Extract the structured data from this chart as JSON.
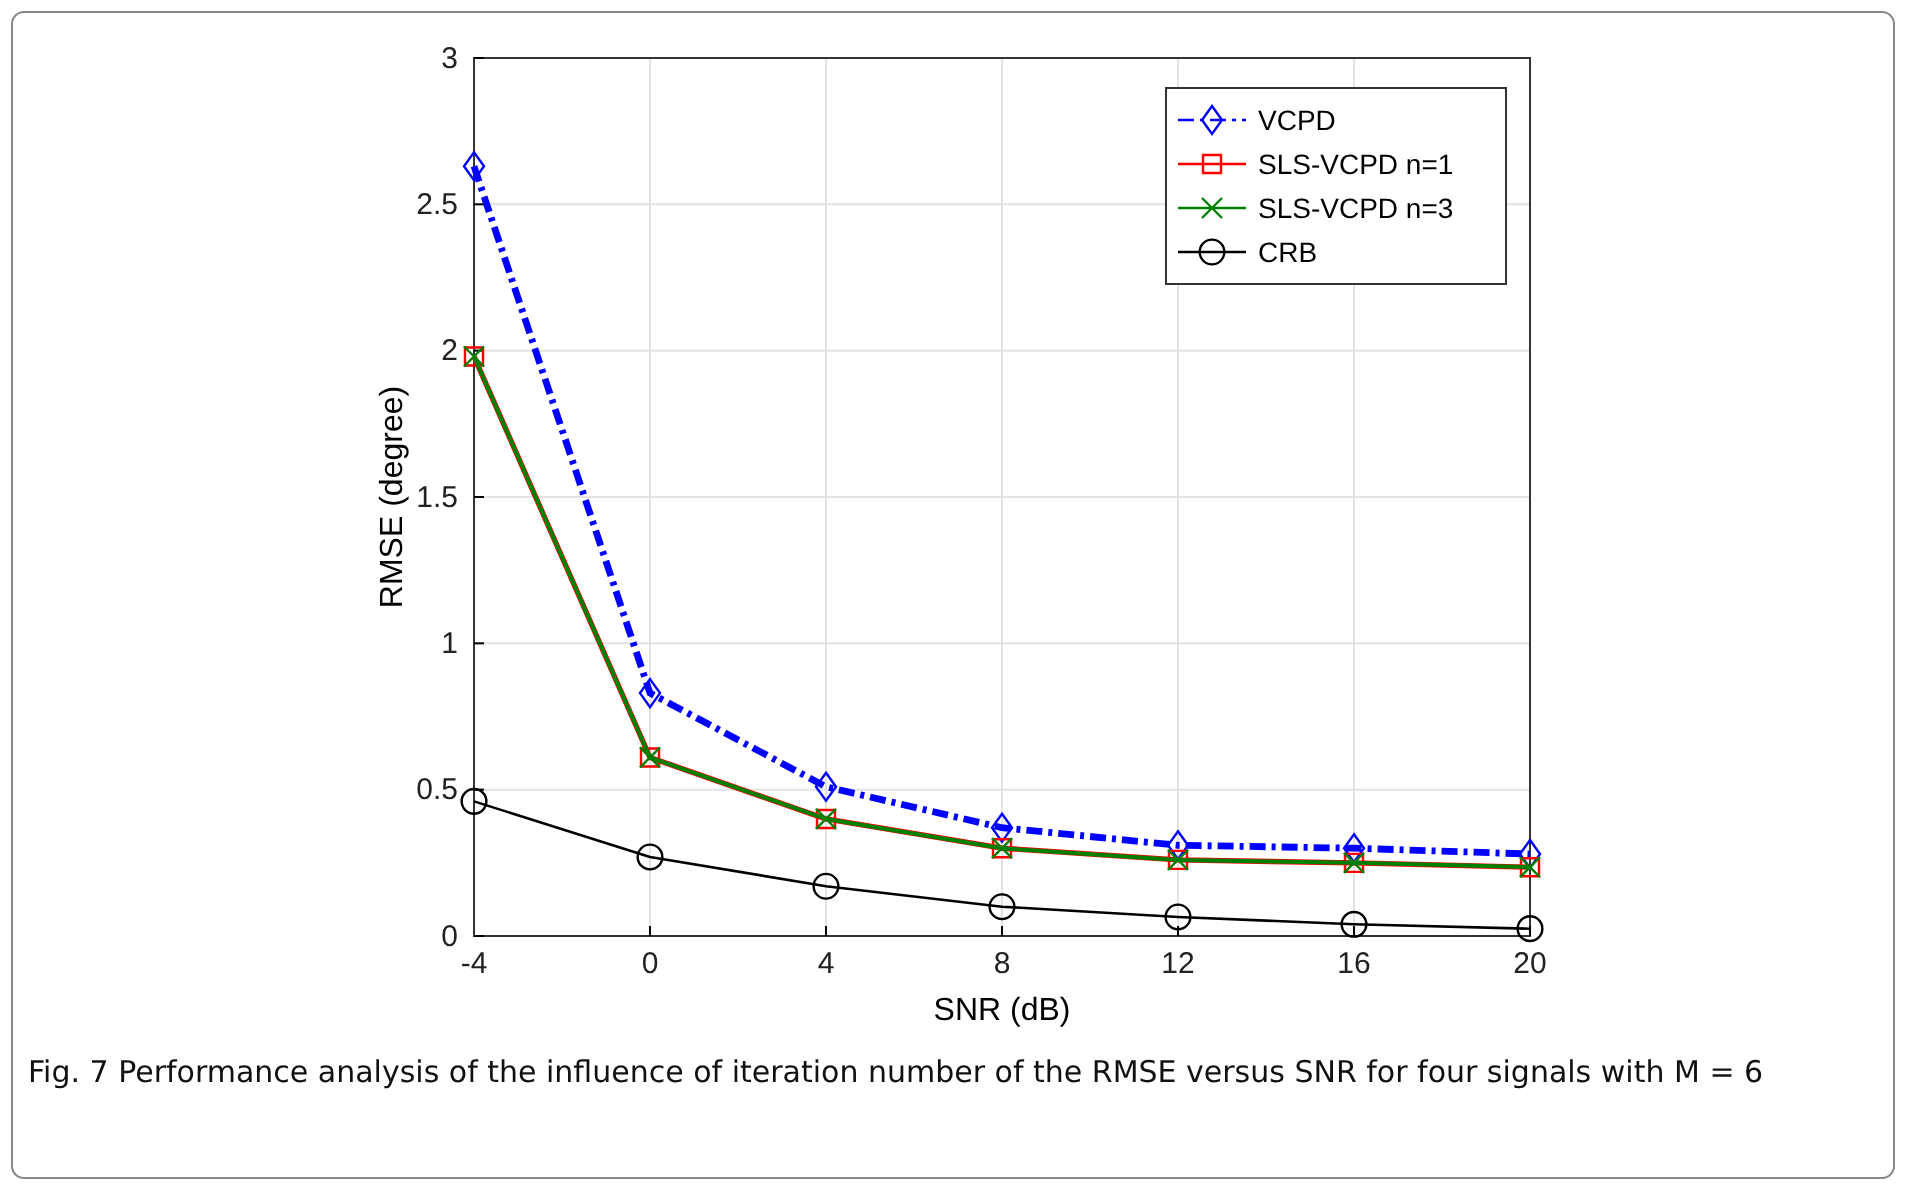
{
  "chart_data": {
    "type": "line",
    "xlabel": "SNR (dB)",
    "ylabel": "RMSE (degree)",
    "x": [
      -4,
      0,
      4,
      8,
      12,
      16,
      20
    ],
    "xlim": [
      -4,
      20
    ],
    "xticks": [
      -4,
      0,
      4,
      8,
      12,
      16,
      20
    ],
    "ylim": [
      0,
      3
    ],
    "yticks": [
      0,
      0.5,
      1,
      1.5,
      2,
      2.5,
      3
    ],
    "grid": true,
    "legend": "top right",
    "series": [
      {
        "name": "VCPD",
        "color": "#0000ff",
        "marker": "diamond",
        "line_style": "dashdot",
        "values": [
          2.63,
          0.83,
          0.51,
          0.37,
          0.31,
          0.3,
          0.28
        ]
      },
      {
        "name": "SLS-VCPD n=1",
        "color": "#ff0000",
        "marker": "square",
        "line_style": "solid",
        "values": [
          1.98,
          0.61,
          0.4,
          0.3,
          0.26,
          0.25,
          0.235
        ]
      },
      {
        "name": "SLS-VCPD n=3",
        "color": "#008000",
        "marker": "cross",
        "line_style": "solid",
        "values": [
          1.98,
          0.61,
          0.4,
          0.3,
          0.26,
          0.25,
          0.235
        ]
      },
      {
        "name": "CRB",
        "color": "#000000",
        "marker": "circle",
        "line_style": "solid",
        "values": [
          0.46,
          0.27,
          0.17,
          0.1,
          0.065,
          0.04,
          0.025
        ]
      }
    ],
    "annotations": [
      "Fig. 7  Performance analysis of the influence of iteration number of the RMSE versus SNR for four signals with M = 6"
    ]
  }
}
